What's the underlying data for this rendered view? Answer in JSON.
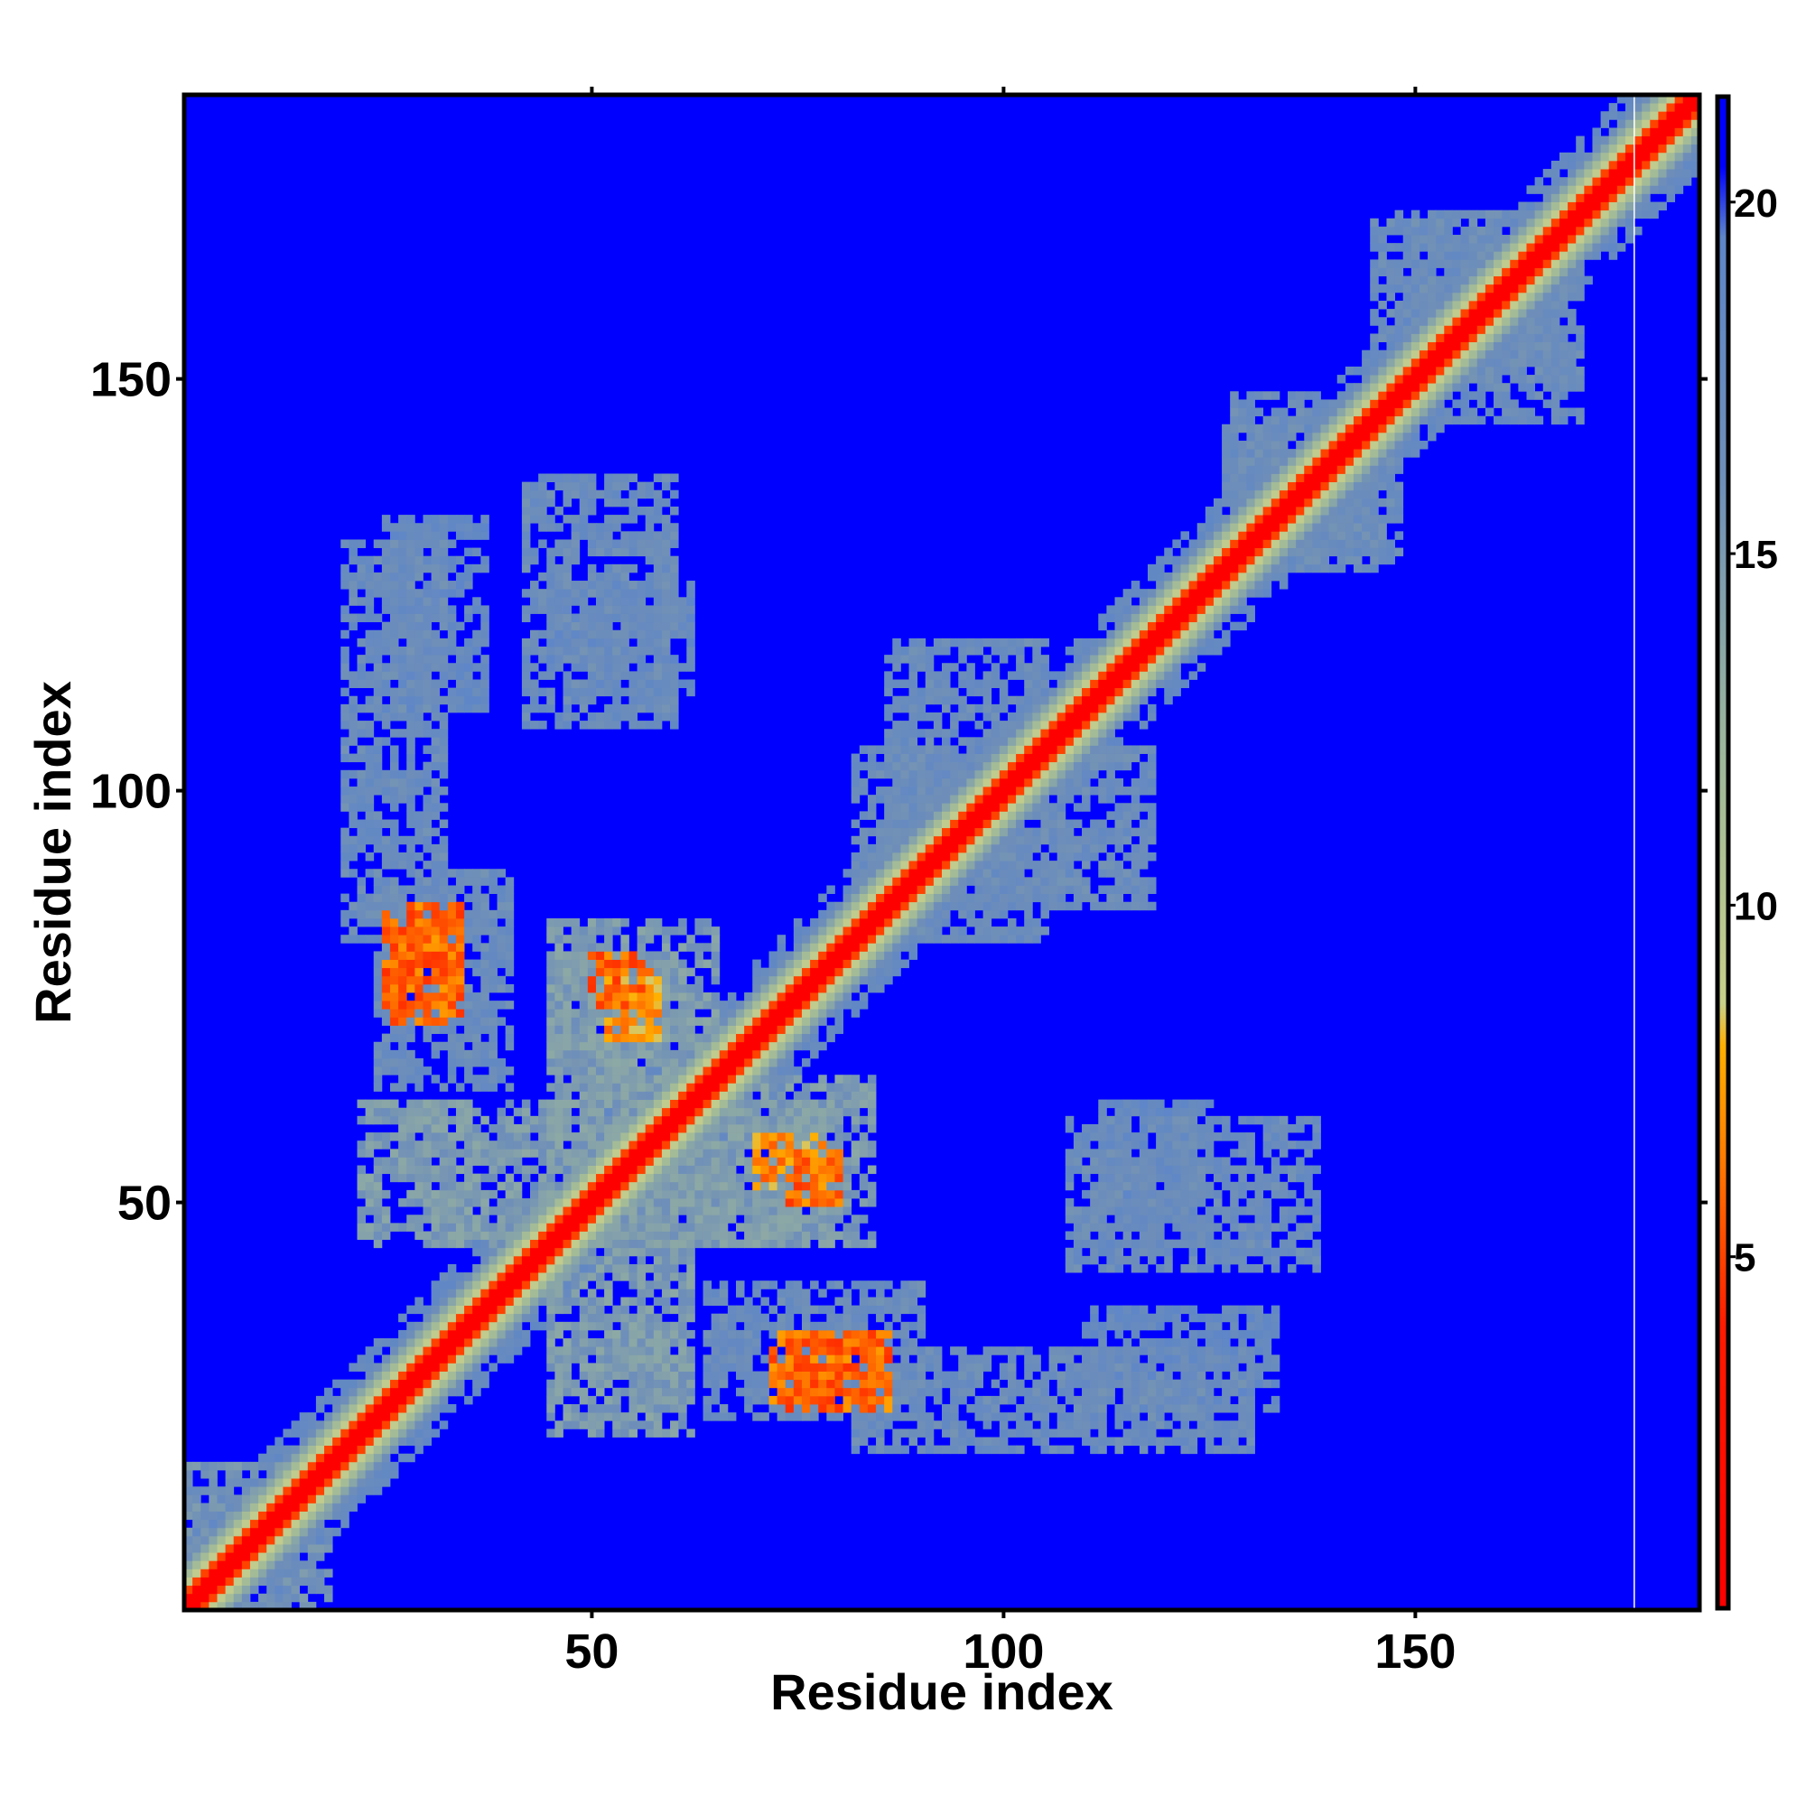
{
  "chart_data": {
    "type": "heatmap",
    "title": "",
    "xlabel": "Residue index",
    "ylabel": "Residue index",
    "n_residues": 184,
    "xlim": [
      1,
      184
    ],
    "ylim": [
      1,
      184
    ],
    "x_ticks": [
      50,
      100,
      150
    ],
    "y_ticks": [
      50,
      100,
      150
    ],
    "colorbar": {
      "ticks": [
        5,
        10,
        15,
        20
      ],
      "range": [
        0,
        21.5
      ],
      "stops": [
        {
          "value": 0,
          "color": "#ff0000"
        },
        {
          "value": 4,
          "color": "#ff1a00"
        },
        {
          "value": 6.5,
          "color": "#ff7f00"
        },
        {
          "value": 8,
          "color": "#ffb000"
        },
        {
          "value": 8.6,
          "color": "#c8d08a"
        },
        {
          "value": 12,
          "color": "#9fb89a"
        },
        {
          "value": 16,
          "color": "#6f8fb8"
        },
        {
          "value": 19.5,
          "color": "#5e86c8"
        },
        {
          "value": 20.5,
          "color": "#0000ff"
        },
        {
          "value": 21.5,
          "color": "#0000ff"
        }
      ]
    },
    "background_value": 21.5,
    "diagonal_band": {
      "core": 0,
      "width_residues": 6
    },
    "contact_regions": [
      {
        "x": [
          20,
          32
        ],
        "y": [
          82,
          130
        ],
        "value": 17
      },
      {
        "x": [
          25,
          34
        ],
        "y": [
          74,
          86
        ],
        "value": 6
      },
      {
        "x": [
          22,
          35
        ],
        "y": [
          45,
          62
        ],
        "value": 15
      },
      {
        "x": [
          42,
          60
        ],
        "y": [
          108,
          138
        ],
        "value": 17
      },
      {
        "x": [
          45,
          62
        ],
        "y": [
          30,
          80
        ],
        "value": 15
      },
      {
        "x": [
          52,
          58
        ],
        "y": [
          70,
          78
        ],
        "value": 7
      },
      {
        "x": [
          62,
          84
        ],
        "y": [
          45,
          65
        ],
        "value": 15
      },
      {
        "x": [
          74,
          80
        ],
        "y": [
          50,
          56
        ],
        "value": 6
      },
      {
        "x": [
          64,
          90
        ],
        "y": [
          24,
          40
        ],
        "value": 17
      },
      {
        "x": [
          72,
          84
        ],
        "y": [
          26,
          34
        ],
        "value": 6
      },
      {
        "x": [
          86,
          105
        ],
        "y": [
          82,
          118
        ],
        "value": 17
      },
      {
        "x": [
          112,
          125
        ],
        "y": [
          45,
          62
        ],
        "value": 18
      },
      {
        "x": [
          110,
          133
        ],
        "y": [
          25,
          37
        ],
        "value": 18
      },
      {
        "x": [
          145,
          170
        ],
        "y": [
          150,
          170
        ],
        "value": 17
      },
      {
        "x": [
          8,
          18
        ],
        "y": [
          1,
          14
        ],
        "value": 16
      },
      {
        "x": [
          128,
          145
        ],
        "y": [
          127,
          148
        ],
        "value": 17
      }
    ],
    "white_line_x": 177
  }
}
